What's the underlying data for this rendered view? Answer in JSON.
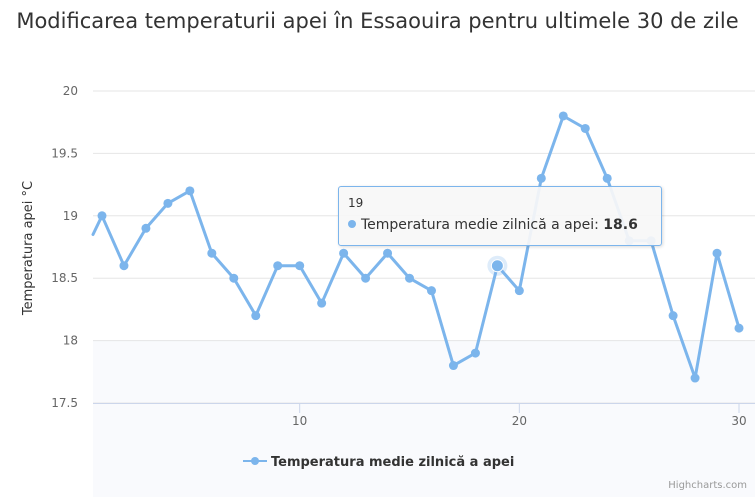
{
  "chart_data": {
    "type": "line",
    "title": "Modificarea temperaturii apei în Essaouira pentru ultimele 30 de zile",
    "ylabel": "Temperatura apei °C",
    "xlabel": "",
    "ylim": [
      17.5,
      20
    ],
    "yticks": [
      "20",
      "19.5",
      "19",
      "18.5",
      "18",
      "17.5"
    ],
    "xticks": [
      "10",
      "20",
      "30"
    ],
    "grid": true,
    "legend_position": "bottom-center",
    "series": [
      {
        "name": "Temperatura medie zilnică a apei",
        "color": "#7cb5ec",
        "x": [
          1,
          2,
          3,
          4,
          5,
          6,
          7,
          8,
          9,
          10,
          11,
          12,
          13,
          14,
          15,
          16,
          17,
          18,
          19,
          20,
          21,
          22,
          23,
          24,
          25,
          26,
          27,
          28,
          29,
          30
        ],
        "values": [
          19.0,
          18.6,
          18.9,
          19.1,
          19.2,
          18.7,
          18.5,
          18.2,
          18.6,
          18.6,
          18.3,
          18.7,
          18.5,
          18.7,
          18.5,
          18.4,
          17.8,
          17.9,
          18.6,
          18.4,
          19.3,
          19.8,
          19.7,
          19.3,
          18.8,
          18.8,
          18.2,
          17.7,
          18.7,
          18.1
        ]
      }
    ]
  },
  "tooltip": {
    "x": "19",
    "series_label": "Temperatura medie zilnică a apei:",
    "value": "18.6"
  },
  "legend": {
    "label": "Temperatura medie zilnică a apei"
  },
  "credits": "Highcharts.com"
}
